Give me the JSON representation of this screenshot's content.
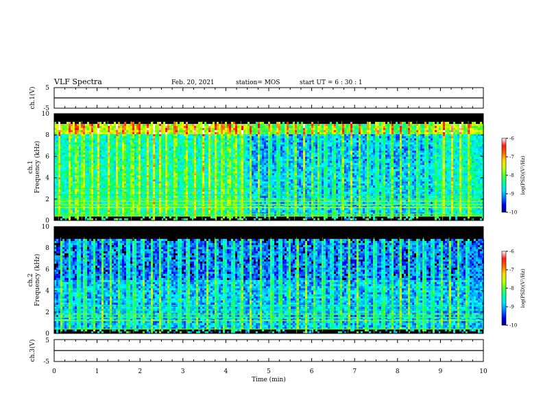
{
  "header": {
    "title": "VLF Spectra",
    "date": "Feb. 20, 2021",
    "station": "station= MOS",
    "start": "start  UT =   6  : 30 : 1"
  },
  "colors": {
    "background": "#000000",
    "colormap": [
      "#00007f",
      "#0000ff",
      "#00a0ff",
      "#00ffff",
      "#00ff60",
      "#a0ff00",
      "#ffff00",
      "#ff8000",
      "#ff0000",
      "#ffffff"
    ]
  },
  "chart_data": [
    {
      "type": "line",
      "panel": "ch1-waveform",
      "ylabel": "ch.1(V)",
      "ylim": [
        -5,
        5
      ],
      "yticks": [
        "5",
        "-5"
      ],
      "series": [
        {
          "values": [
            0,
            0
          ]
        }
      ]
    },
    {
      "type": "heatmap",
      "panel": "ch1-spectrogram",
      "ylabel": "ch.1\nFrequency (kHz)",
      "ylim": [
        0,
        10
      ],
      "yticks": [
        "0",
        "2",
        "4",
        "6",
        "8",
        "10"
      ],
      "colorbar": {
        "label": "log(PSD)(V²/Hz)",
        "range": [
          -10,
          -6
        ],
        "ticks": [
          "-6",
          "-7",
          "-8",
          "-9",
          "-10"
        ]
      },
      "spike_times_min": [
        0.1,
        0.35,
        0.5,
        0.65,
        0.85,
        1.0,
        1.25,
        1.45,
        1.6,
        1.8,
        1.95,
        2.15,
        2.3,
        2.45,
        2.6,
        2.8,
        3.05,
        3.25,
        3.45,
        3.6,
        3.75,
        3.9,
        4.05,
        4.2,
        4.35,
        4.55,
        4.75,
        5.0,
        5.2,
        5.4,
        5.6,
        5.8,
        6.0,
        6.15,
        6.3,
        6.5,
        6.7,
        6.9,
        7.1,
        7.3,
        7.5,
        7.65,
        7.85,
        8.05,
        8.25,
        8.45,
        8.65,
        8.85,
        9.05,
        9.25,
        9.45,
        9.65
      ],
      "noise_band_ends_min": [
        4.5,
        8.9
      ]
    },
    {
      "type": "heatmap",
      "panel": "ch2-spectrogram",
      "ylabel": "ch.2\nFrequency (kHz)",
      "ylim": [
        0,
        10
      ],
      "yticks": [
        "0",
        "2",
        "4",
        "6",
        "8",
        "10"
      ],
      "colorbar": {
        "label": "log(PSD)(V²/Hz)",
        "range": [
          -10,
          -6
        ],
        "ticks": [
          "-6",
          "-7",
          "-8",
          "-9",
          "-10"
        ]
      },
      "spike_times_min": [
        0.15,
        0.35,
        0.55,
        0.7,
        0.9,
        1.1,
        1.3,
        1.5,
        1.7,
        1.85,
        2.05,
        2.25,
        2.45,
        2.65,
        2.9,
        3.1,
        3.3,
        3.55,
        3.75,
        3.95,
        4.15,
        4.35,
        4.55,
        4.8,
        5.05,
        5.25,
        5.45,
        5.65,
        5.85,
        6.05,
        6.25,
        6.45,
        6.65,
        6.85,
        7.05,
        7.25,
        7.45,
        7.65,
        7.85,
        8.05,
        8.25,
        8.45,
        8.6,
        8.8,
        9.0,
        9.2,
        9.4,
        9.6
      ]
    },
    {
      "type": "line",
      "panel": "ch3-waveform",
      "ylabel": "ch.3(V)",
      "ylim": [
        -5,
        5
      ],
      "yticks": [
        "5",
        "-5"
      ],
      "xlabel": "Time  (min)",
      "xlim": [
        0,
        10
      ],
      "xticks": [
        "0",
        "1",
        "2",
        "3",
        "4",
        "5",
        "6",
        "7",
        "8",
        "9",
        "10"
      ],
      "series": [
        {
          "values": [
            0,
            0
          ]
        }
      ]
    }
  ]
}
